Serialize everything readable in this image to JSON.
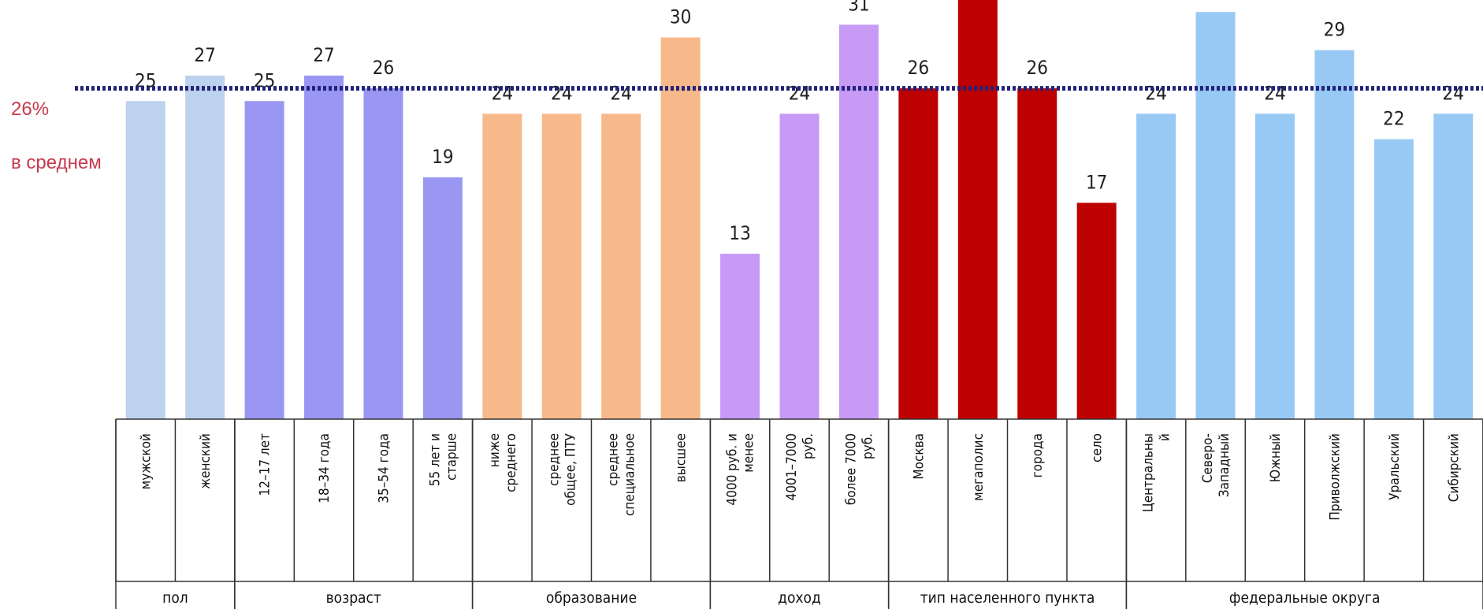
{
  "chart_data": {
    "type": "bar",
    "categories": [
      "мужской",
      "женский",
      "12–17 лет",
      "18–34 года",
      "35–54 года",
      "55 лет и старше",
      "ниже среднего",
      "среднее общее, ПТУ",
      "среднее специальное",
      "высшее",
      "4000 руб. и менее",
      "4001–7000 руб.",
      "более 7000 руб.",
      "Москва",
      "мегаполис",
      "города",
      "село",
      "Центральный",
      "Северо-Западный",
      "Южный",
      "Приволжский",
      "Уральский",
      "Сибирский"
    ],
    "values": [
      25,
      27,
      25,
      27,
      26,
      19,
      24,
      24,
      24,
      30,
      13,
      24,
      31,
      26,
      35,
      26,
      17,
      24,
      32,
      24,
      29,
      22,
      24
    ],
    "value_labels": [
      "25",
      "27",
      "25",
      "27",
      "26",
      "19",
      "24",
      "24",
      "24",
      "30",
      "13",
      "24",
      "31",
      "26",
      "",
      "26",
      "17",
      "24",
      "32",
      "24",
      "29",
      "22",
      "24"
    ],
    "category_lines": [
      [
        "мужской"
      ],
      [
        "женский"
      ],
      [
        "12–17 лет"
      ],
      [
        "18–34 года"
      ],
      [
        "35–54 года"
      ],
      [
        "55 лет и",
        "старше"
      ],
      [
        "ниже",
        "среднего"
      ],
      [
        "среднее",
        "общее, ПТУ"
      ],
      [
        "среднее",
        "специальное"
      ],
      [
        "высшее"
      ],
      [
        "4000 руб. и",
        "менее"
      ],
      [
        "4001–7000",
        "руб."
      ],
      [
        "более 7000",
        "руб."
      ],
      [
        "Москва"
      ],
      [
        "мегаполис"
      ],
      [
        "города"
      ],
      [
        "село"
      ],
      [
        "Центральны",
        "й"
      ],
      [
        "Северо-",
        "Западный"
      ],
      [
        "Южный"
      ],
      [
        "Приволжский"
      ],
      [
        "Уральский"
      ],
      [
        "Сибирский"
      ]
    ],
    "groups": [
      {
        "label": "пол",
        "start": 0,
        "end": 1,
        "color": "#bcd2ee"
      },
      {
        "label": "возраст",
        "start": 2,
        "end": 5,
        "color": "#9a97f2"
      },
      {
        "label": "образование",
        "start": 6,
        "end": 9,
        "color": "#f7b88a"
      },
      {
        "label": "доход",
        "start": 10,
        "end": 12,
        "color": "#c79af5"
      },
      {
        "label": "тип населенного пункта",
        "start": 13,
        "end": 16,
        "color": "#bd0000"
      },
      {
        "label": "федеральные округа",
        "start": 17,
        "end": 22,
        "color": "#98c9f5"
      }
    ],
    "average": {
      "value": 26,
      "label_value": "26%",
      "label_text": "в среднем",
      "color": "#22227a",
      "label_color": "#c83a4e"
    },
    "ylim": [
      0,
      35
    ],
    "grid": false,
    "legend": "none",
    "xlabel": "",
    "ylabel": ""
  }
}
